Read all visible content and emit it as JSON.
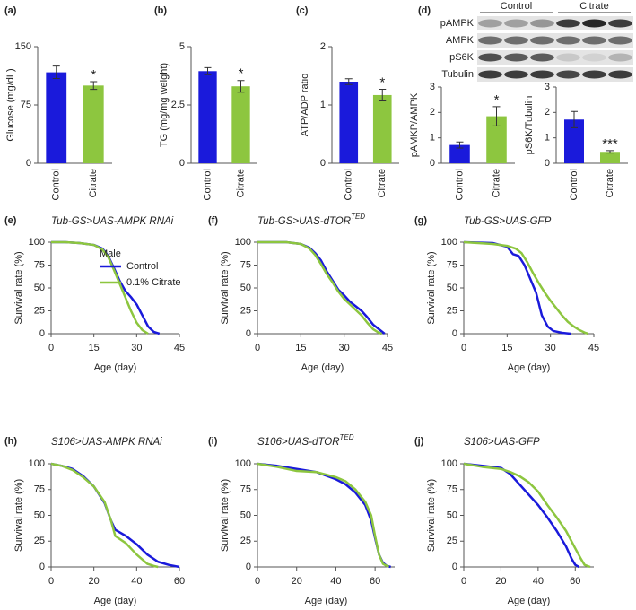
{
  "blot": {
    "label": "(d)",
    "groups": [
      "Control",
      "Citrate"
    ],
    "rows": [
      "pAMPK",
      "AMPK",
      "pS6K",
      "Tubulin"
    ]
  },
  "chart_data": [
    {
      "type": "bar",
      "label": "(a)",
      "ylabel": "Glucose (mg/dL)",
      "categories": [
        "Control",
        "Citrate"
      ],
      "values": [
        117,
        100
      ],
      "errors": [
        8,
        5
      ],
      "colors": [
        "#1a1adb",
        "#8dc63f"
      ],
      "ylim": [
        0,
        150
      ],
      "yticks": [
        0,
        75,
        150
      ],
      "annotation": "*"
    },
    {
      "type": "bar",
      "label": "(b)",
      "ylabel": "TG (mg/mg weight)",
      "categories": [
        "Control",
        "Citrate"
      ],
      "values": [
        3.95,
        3.3
      ],
      "errors": [
        0.15,
        0.25
      ],
      "colors": [
        "#1a1adb",
        "#8dc63f"
      ],
      "ylim": [
        0,
        5
      ],
      "yticks": [
        0,
        2.5,
        5
      ],
      "annotation": "*"
    },
    {
      "type": "bar",
      "label": "(c)",
      "ylabel": "ATP/ADP ratio",
      "categories": [
        "Control",
        "Citrate"
      ],
      "values": [
        1.4,
        1.17
      ],
      "errors": [
        0.05,
        0.1
      ],
      "colors": [
        "#1a1adb",
        "#8dc63f"
      ],
      "ylim": [
        0,
        2
      ],
      "yticks": [
        0,
        1,
        2
      ],
      "annotation": "*"
    },
    {
      "type": "bar",
      "ylabel": "pAMKP/AMPK",
      "categories": [
        "Control",
        "Citrate"
      ],
      "values": [
        0.72,
        1.85
      ],
      "errors": [
        0.12,
        0.38
      ],
      "colors": [
        "#1a1adb",
        "#8dc63f"
      ],
      "ylim": [
        0,
        3
      ],
      "yticks": [
        0,
        1,
        2,
        3
      ],
      "annotation": "*"
    },
    {
      "type": "bar",
      "ylabel": "pS6K/Tubulin",
      "categories": [
        "Control",
        "Citrate"
      ],
      "values": [
        1.72,
        0.45
      ],
      "errors": [
        0.32,
        0.05
      ],
      "colors": [
        "#1a1adb",
        "#8dc63f"
      ],
      "ylim": [
        0,
        3
      ],
      "yticks": [
        0,
        1,
        2,
        3
      ],
      "annotation": "***"
    },
    {
      "type": "line",
      "label": "(e)",
      "title": "Tub-GS>UAS-AMPK RNAi",
      "xlabel": "Age (day)",
      "ylabel": "Survival rate (%)",
      "xlim": [
        0,
        45
      ],
      "xticks": [
        0,
        15,
        30,
        45
      ],
      "ylim": [
        0,
        100
      ],
      "yticks": [
        0,
        25,
        50,
        75,
        100
      ],
      "legend_title": "Male",
      "series": [
        {
          "name": "Control",
          "color": "#1a1adb",
          "x": [
            0,
            5,
            10,
            15,
            18,
            20,
            22,
            24,
            26,
            28,
            30,
            32,
            34,
            36,
            38
          ],
          "values": [
            100,
            100,
            99,
            97,
            93,
            85,
            72,
            58,
            47,
            40,
            32,
            20,
            8,
            2,
            0
          ]
        },
        {
          "name": "0.1% Citrate",
          "color": "#8dc63f",
          "x": [
            0,
            5,
            10,
            15,
            18,
            20,
            22,
            24,
            26,
            28,
            30,
            32,
            34
          ],
          "values": [
            100,
            100,
            99,
            97,
            92,
            84,
            70,
            55,
            40,
            25,
            12,
            4,
            0
          ]
        }
      ]
    },
    {
      "type": "line",
      "label": "(f)",
      "title": "Tub-GS>UAS-dTOR",
      "title_sup": "TED",
      "xlabel": "Age (day)",
      "ylabel": "Survival rate (%)",
      "xlim": [
        0,
        45
      ],
      "xticks": [
        0,
        15,
        30,
        45
      ],
      "ylim": [
        0,
        100
      ],
      "yticks": [
        0,
        25,
        50,
        75,
        100
      ],
      "series": [
        {
          "color": "#1a1adb",
          "x": [
            0,
            10,
            15,
            18,
            20,
            22,
            24,
            26,
            28,
            30,
            32,
            34,
            36,
            38,
            40,
            42,
            44
          ],
          "values": [
            100,
            100,
            98,
            94,
            88,
            80,
            68,
            58,
            48,
            42,
            35,
            30,
            25,
            18,
            10,
            5,
            0
          ]
        },
        {
          "color": "#8dc63f",
          "x": [
            0,
            10,
            15,
            18,
            20,
            22,
            24,
            26,
            28,
            30,
            32,
            34,
            36,
            38,
            40,
            42,
            43
          ],
          "values": [
            100,
            100,
            98,
            93,
            86,
            76,
            65,
            56,
            46,
            38,
            32,
            26,
            20,
            12,
            5,
            1,
            0
          ]
        }
      ]
    },
    {
      "type": "line",
      "label": "(g)",
      "title": "Tub-GS>UAS-GFP",
      "xlabel": "Age (day)",
      "ylabel": "Survival rate (%)",
      "xlim": [
        0,
        45
      ],
      "xticks": [
        0,
        15,
        30,
        45
      ],
      "ylim": [
        0,
        100
      ],
      "yticks": [
        0,
        25,
        50,
        75,
        100
      ],
      "series": [
        {
          "color": "#1a1adb",
          "x": [
            0,
            10,
            15,
            17,
            19,
            21,
            23,
            25,
            27,
            29,
            31,
            34,
            37
          ],
          "values": [
            100,
            99,
            95,
            87,
            85,
            75,
            60,
            45,
            20,
            8,
            3,
            1,
            0
          ]
        },
        {
          "color": "#8dc63f",
          "x": [
            0,
            10,
            15,
            18,
            20,
            22,
            24,
            26,
            28,
            30,
            32,
            34,
            36,
            38,
            40,
            42,
            43
          ],
          "values": [
            100,
            98,
            96,
            93,
            88,
            78,
            66,
            55,
            45,
            36,
            28,
            20,
            13,
            8,
            4,
            1,
            0
          ]
        }
      ]
    },
    {
      "type": "line",
      "label": "(h)",
      "title": "S106>UAS-AMPK RNAi",
      "xlabel": "Age (day)",
      "ylabel": "Survival rate (%)",
      "xlim": [
        0,
        60
      ],
      "xticks": [
        0,
        20,
        40,
        60
      ],
      "ylim": [
        0,
        100
      ],
      "yticks": [
        0,
        25,
        50,
        75,
        100
      ],
      "series": [
        {
          "color": "#1a1adb",
          "x": [
            0,
            5,
            10,
            15,
            20,
            25,
            28,
            30,
            35,
            40,
            45,
            50,
            55,
            60
          ],
          "values": [
            100,
            98,
            95,
            88,
            78,
            62,
            45,
            36,
            30,
            22,
            12,
            5,
            2,
            0
          ]
        },
        {
          "color": "#8dc63f",
          "x": [
            0,
            5,
            10,
            15,
            20,
            25,
            28,
            30,
            35,
            40,
            45,
            48,
            50
          ],
          "values": [
            100,
            98,
            94,
            87,
            78,
            63,
            45,
            30,
            23,
            12,
            3,
            1,
            0
          ]
        }
      ]
    },
    {
      "type": "line",
      "label": "(i)",
      "title": "S106>UAS-dTOR",
      "title_sup": "TED",
      "xlabel": "Age (day)",
      "ylabel": "Survival rate (%)",
      "xlim": [
        0,
        70
      ],
      "xticks": [
        0,
        20,
        40,
        60
      ],
      "ylim": [
        0,
        100
      ],
      "yticks": [
        0,
        25,
        50,
        75,
        100
      ],
      "series": [
        {
          "color": "#1a1adb",
          "x": [
            0,
            10,
            20,
            30,
            40,
            45,
            50,
            55,
            58,
            60,
            62,
            64,
            66,
            68
          ],
          "values": [
            100,
            98,
            95,
            92,
            85,
            80,
            72,
            60,
            45,
            28,
            12,
            4,
            1,
            0
          ]
        },
        {
          "color": "#8dc63f",
          "x": [
            0,
            10,
            20,
            30,
            40,
            45,
            50,
            55,
            58,
            60,
            62,
            64,
            67
          ],
          "values": [
            100,
            97,
            93,
            92,
            87,
            83,
            75,
            63,
            50,
            30,
            12,
            3,
            0
          ]
        }
      ]
    },
    {
      "type": "line",
      "label": "(j)",
      "title": "S106>UAS-GFP",
      "xlabel": "Age (day)",
      "ylabel": "Survival rate (%)",
      "xlim": [
        0,
        70
      ],
      "xticks": [
        0,
        20,
        40,
        60
      ],
      "ylim": [
        0,
        100
      ],
      "yticks": [
        0,
        25,
        50,
        75,
        100
      ],
      "series": [
        {
          "color": "#1a1adb",
          "x": [
            0,
            10,
            20,
            25,
            30,
            35,
            40,
            45,
            50,
            55,
            58,
            60,
            62
          ],
          "values": [
            100,
            98,
            96,
            90,
            80,
            70,
            60,
            48,
            35,
            20,
            8,
            2,
            0
          ]
        },
        {
          "color": "#8dc63f",
          "x": [
            0,
            10,
            20,
            25,
            30,
            35,
            40,
            45,
            50,
            55,
            60,
            63,
            65,
            68
          ],
          "values": [
            100,
            97,
            95,
            92,
            88,
            82,
            73,
            60,
            48,
            35,
            18,
            8,
            2,
            0
          ]
        }
      ]
    }
  ]
}
